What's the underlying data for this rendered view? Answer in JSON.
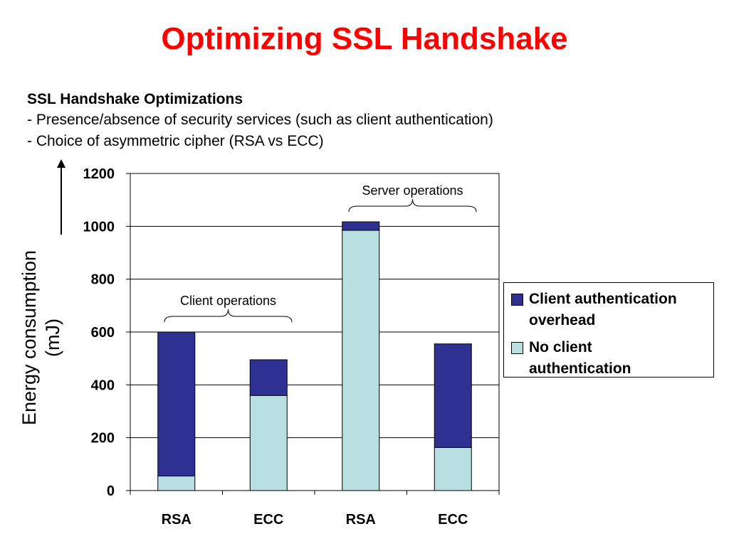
{
  "slide": {
    "title": "Optimizing SSL Handshake",
    "subheading": "SSL Handshake Optimizations",
    "bullets": [
      "- Presence/absence of security services (such as client authentication)",
      "- Choice of asymmetric cipher (RSA vs ECC)"
    ]
  },
  "chart_data": {
    "type": "bar",
    "stacked": true,
    "title": "",
    "xlabel": "",
    "ylabel": "Energy consumption (mJ)",
    "ylabel_lines": [
      "Energy consumption",
      "(mJ)"
    ],
    "ylim": [
      0,
      1200
    ],
    "yticks": [
      0,
      200,
      400,
      600,
      800,
      1000,
      1200
    ],
    "grid": true,
    "categories": [
      "RSA",
      "ECC",
      "RSA",
      "ECC"
    ],
    "series": [
      {
        "name": "No client authentication",
        "legend_lines": [
          "No client",
          "authentication"
        ],
        "color": "#b8e0e0",
        "values": [
          55,
          360,
          985,
          163
        ]
      },
      {
        "name": "Client authentication overhead",
        "legend_lines": [
          "Client authentication",
          "overhead"
        ],
        "color": "#2e3192",
        "values": [
          545,
          135,
          32,
          392
        ]
      }
    ],
    "legend_position": "right",
    "annotations": [
      {
        "text": "Client operations",
        "categories": [
          0,
          1
        ]
      },
      {
        "text": "Server operations",
        "categories": [
          2,
          3
        ]
      }
    ]
  }
}
